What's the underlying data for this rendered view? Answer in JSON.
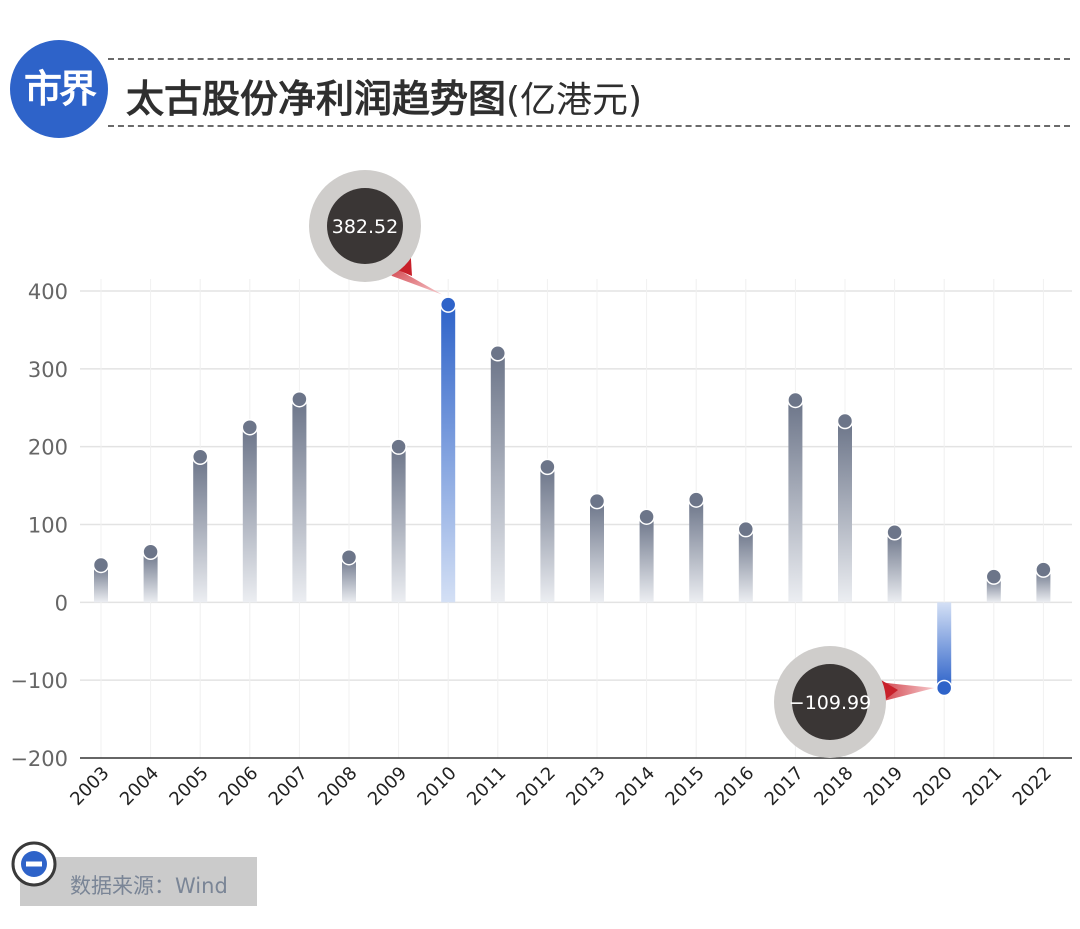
{
  "header": {
    "logo_text": "市界",
    "title": "太古股份净利润趋势图",
    "unit": "(亿港元)"
  },
  "footer": {
    "source": "数据来源：Wind"
  },
  "colors": {
    "brand": "#2e63c9",
    "bar": "#6c7589",
    "highlight_bar": "#2e63c9",
    "callout": "#3a3635",
    "callout_ring": "#cfcdcb",
    "pointer": "#c8202a"
  },
  "chart_data": {
    "type": "bar",
    "title": "太古股份净利润趋势图",
    "unit": "亿港元",
    "categories": [
      "2003",
      "2004",
      "2005",
      "2006",
      "2007",
      "2008",
      "2009",
      "2010",
      "2011",
      "2012",
      "2013",
      "2014",
      "2015",
      "2016",
      "2017",
      "2018",
      "2019",
      "2020",
      "2021",
      "2022"
    ],
    "values": [
      48,
      65,
      187,
      225,
      261,
      58,
      200,
      382.52,
      320,
      174,
      130,
      110,
      132,
      94,
      260,
      233,
      90,
      -109.99,
      33,
      42
    ],
    "ylim": [
      -200,
      400
    ],
    "yticks": [
      "400",
      "300",
      "200",
      "100",
      "0",
      "−100",
      "−200"
    ],
    "grid": true,
    "highlights": [
      {
        "category": "2010",
        "label": "382.52"
      },
      {
        "category": "2020",
        "label": "−109.99"
      }
    ]
  }
}
